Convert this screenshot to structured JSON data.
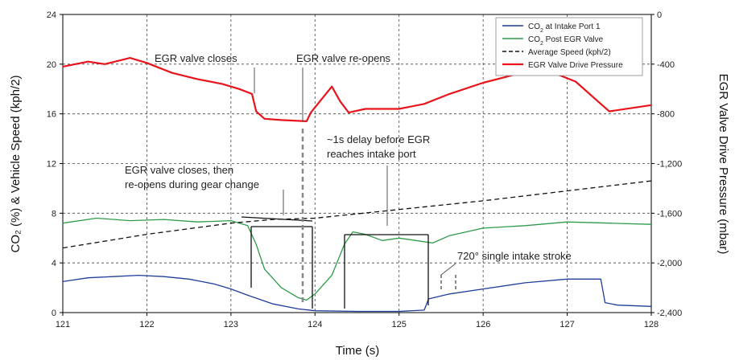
{
  "chart_data": {
    "type": "line",
    "xlabel": "Time (s)",
    "ylabel": "CO₂ (%) & Vehicle Speed (kph/2)",
    "y2label": "EGR Valve Drive Pressure (mbar)",
    "xlim": [
      121,
      128
    ],
    "ylim": [
      0,
      24
    ],
    "y2lim": [
      0,
      -2400
    ],
    "grid": true,
    "legend_position": "top-right",
    "x_ticks": [
      "121",
      "122",
      "123",
      "124",
      "125",
      "126",
      "127",
      "128"
    ],
    "y_ticks": [
      "0",
      "4",
      "8",
      "12",
      "16",
      "20",
      "24"
    ],
    "y2_ticks": [
      "0",
      "-400",
      "-800",
      "-1,200",
      "-1,600",
      "-2,000",
      "-2,400"
    ],
    "series": [
      {
        "name": "CO2 at Intake Port 1",
        "legend_main": "CO",
        "legend_sub": "2",
        "legend_rest": " at Intake Port 1",
        "axis": "left",
        "color": "#1f3d99",
        "x": [
          121.0,
          121.3,
          121.6,
          121.9,
          122.2,
          122.5,
          122.8,
          123.0,
          123.2,
          123.5,
          123.8,
          124.0,
          124.5,
          125.0,
          125.3,
          125.35,
          125.6,
          126.0,
          126.5,
          127.0,
          127.4,
          127.45,
          127.6,
          128.0
        ],
        "y": [
          2.5,
          2.8,
          2.9,
          3.0,
          2.9,
          2.7,
          2.3,
          1.9,
          1.4,
          0.7,
          0.3,
          0.15,
          0.1,
          0.1,
          0.2,
          1.1,
          1.5,
          1.9,
          2.4,
          2.7,
          2.7,
          0.8,
          0.6,
          0.5
        ]
      },
      {
        "name": "CO2 Post EGR Valve",
        "legend_main": "CO",
        "legend_sub": "2",
        "legend_rest": " Post EGR Valve",
        "axis": "left",
        "color": "#2e9b4a",
        "x": [
          121.0,
          121.4,
          121.8,
          122.2,
          122.6,
          123.0,
          123.2,
          123.3,
          123.4,
          123.6,
          123.8,
          123.9,
          124.0,
          124.2,
          124.35,
          124.45,
          124.6,
          124.8,
          125.0,
          125.2,
          125.4,
          125.6,
          126.0,
          126.5,
          127.0,
          127.5,
          128.0
        ],
        "y": [
          7.2,
          7.6,
          7.4,
          7.5,
          7.3,
          7.4,
          7.0,
          5.5,
          3.5,
          2.0,
          1.2,
          1.0,
          1.5,
          3.0,
          5.5,
          6.5,
          6.3,
          5.8,
          6.0,
          5.8,
          5.6,
          6.2,
          6.8,
          7.0,
          7.3,
          7.2,
          7.1
        ]
      },
      {
        "name": "Average Speed (kph/2)",
        "legend_main": "Average Speed (kph/2)",
        "legend_sub": "",
        "legend_rest": "",
        "axis": "left",
        "color": "#111111",
        "dashed": true,
        "x": [
          121.0,
          122.0,
          123.0,
          123.5,
          124.0,
          125.0,
          126.0,
          127.0,
          128.0
        ],
        "y": [
          5.2,
          6.3,
          7.2,
          7.5,
          7.6,
          8.3,
          9.0,
          9.8,
          10.6
        ]
      },
      {
        "name": "EGR Valve Drive Pressure",
        "legend_main": "EGR Valve Drive Pressure",
        "legend_sub": "",
        "legend_rest": "",
        "axis": "right",
        "color": "#e8141b",
        "x": [
          121.0,
          121.3,
          121.5,
          121.8,
          122.0,
          122.3,
          122.6,
          122.9,
          123.1,
          123.25,
          123.3,
          123.4,
          123.6,
          123.9,
          123.95,
          124.2,
          124.3,
          124.4,
          124.6,
          125.0,
          125.3,
          125.6,
          126.0,
          126.4,
          126.8,
          127.1,
          127.5,
          128.0
        ],
        "y": [
          -420,
          -380,
          -400,
          -350,
          -390,
          -470,
          -520,
          -560,
          -600,
          -640,
          -780,
          -840,
          -850,
          -860,
          -790,
          -580,
          -700,
          -790,
          -760,
          -760,
          -720,
          -640,
          -550,
          -480,
          -460,
          -540,
          -780,
          -730
        ]
      }
    ],
    "annotations": [
      {
        "text": "EGR valve closes",
        "line1": "EGR valve closes",
        "line2": ""
      },
      {
        "text": "EGR valve re-opens",
        "line1": "EGR valve re-opens",
        "line2": ""
      },
      {
        "text": "~1s delay before EGR reaches intake port",
        "line1": "~1s delay before EGR",
        "line2": "reaches intake port"
      },
      {
        "text": "EGR valve closes, then re-opens during gear change",
        "line1": "EGR valve closes, then",
        "line2": "re-opens during gear change"
      },
      {
        "text": "720° single intake stroke",
        "line1": "720° single intake stroke",
        "line2": ""
      }
    ]
  }
}
